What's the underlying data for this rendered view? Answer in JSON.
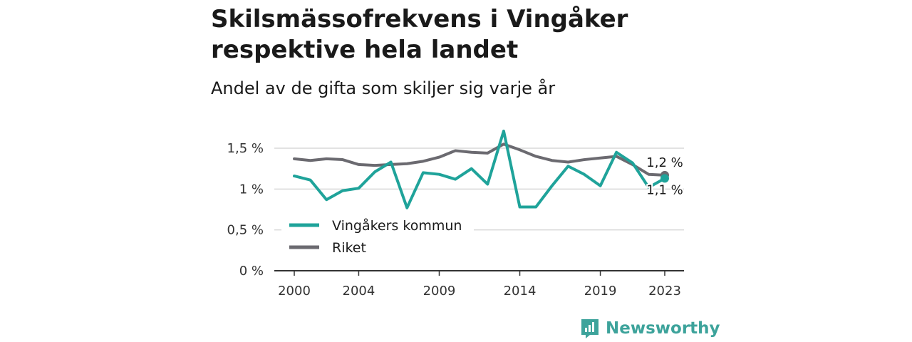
{
  "header": {
    "title": "Skilsmässofrekvens i Vingåker respektive hela landet",
    "subtitle": "Andel av de gifta som skiljer sig varje år"
  },
  "brand": {
    "name": "Newsworthy",
    "icon": "newsworthy-logo-icon",
    "color": "#3da39b"
  },
  "chart_data": {
    "type": "line",
    "x": [
      2000,
      2001,
      2002,
      2003,
      2004,
      2005,
      2006,
      2007,
      2008,
      2009,
      2010,
      2011,
      2012,
      2013,
      2014,
      2015,
      2016,
      2017,
      2018,
      2019,
      2020,
      2021,
      2022,
      2023
    ],
    "x_ticks": [
      "2000",
      "2004",
      "2009",
      "2014",
      "2019",
      "2023"
    ],
    "y_ticks": [
      "0 %",
      "0,5 %",
      "1 %",
      "1,5 %"
    ],
    "ylim": [
      0,
      1.5
    ],
    "grid": true,
    "legend_position": "bottom-left",
    "series": [
      {
        "name": "Vingåkers kommun",
        "color": "#1fa39a",
        "values": [
          1.16,
          1.11,
          0.87,
          0.98,
          1.01,
          1.21,
          1.33,
          0.77,
          1.2,
          1.18,
          1.12,
          1.25,
          1.06,
          1.71,
          0.78,
          0.78,
          1.04,
          1.28,
          1.18,
          1.04,
          1.45,
          1.32,
          1.02,
          1.13
        ],
        "end_label": "1,1 %"
      },
      {
        "name": "Riket",
        "color": "#6b6a70",
        "values": [
          1.37,
          1.35,
          1.37,
          1.36,
          1.3,
          1.29,
          1.3,
          1.31,
          1.34,
          1.39,
          1.47,
          1.45,
          1.44,
          1.55,
          1.48,
          1.4,
          1.35,
          1.33,
          1.36,
          1.38,
          1.4,
          1.3,
          1.18,
          1.17
        ],
        "end_label": "1,2 %"
      }
    ]
  }
}
